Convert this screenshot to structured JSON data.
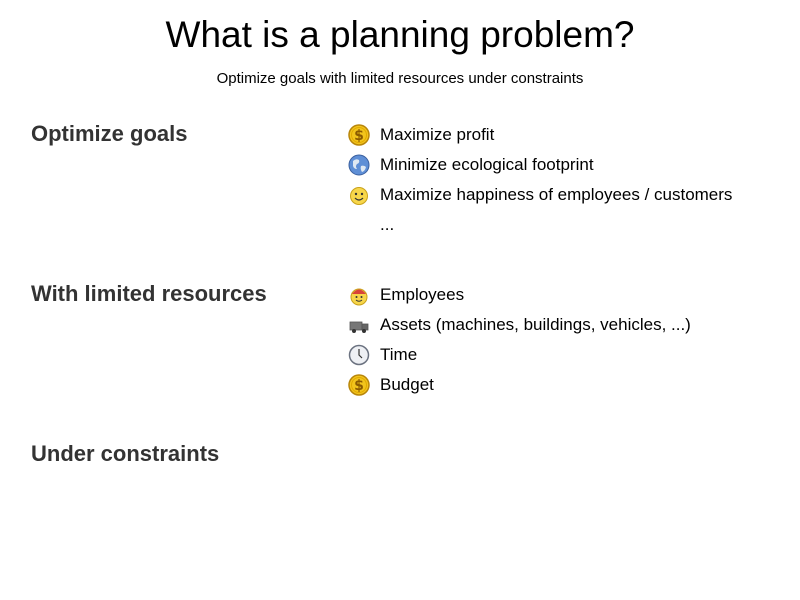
{
  "slide": {
    "title": "What is a planning problem?",
    "subtitle": "Optimize goals with limited resources under constraints"
  },
  "sections": {
    "goals": {
      "heading": "Optimize goals",
      "items": [
        {
          "icon": "dollar-coin-icon",
          "label": "Maximize profit"
        },
        {
          "icon": "globe-icon",
          "label": "Minimize ecological footprint"
        },
        {
          "icon": "smiley-icon",
          "label": "Maximize happiness of employees / customers"
        },
        {
          "icon": "",
          "label": "..."
        }
      ]
    },
    "resources": {
      "heading": "With limited resources",
      "items": [
        {
          "icon": "employee-icon",
          "label": "Employees"
        },
        {
          "icon": "truck-icon",
          "label": "Assets (machines, buildings, vehicles, ...)"
        },
        {
          "icon": "clock-icon",
          "label": "Time"
        },
        {
          "icon": "dollar-coin-icon",
          "label": "Budget"
        }
      ]
    },
    "constraints": {
      "heading": "Under constraints"
    }
  }
}
